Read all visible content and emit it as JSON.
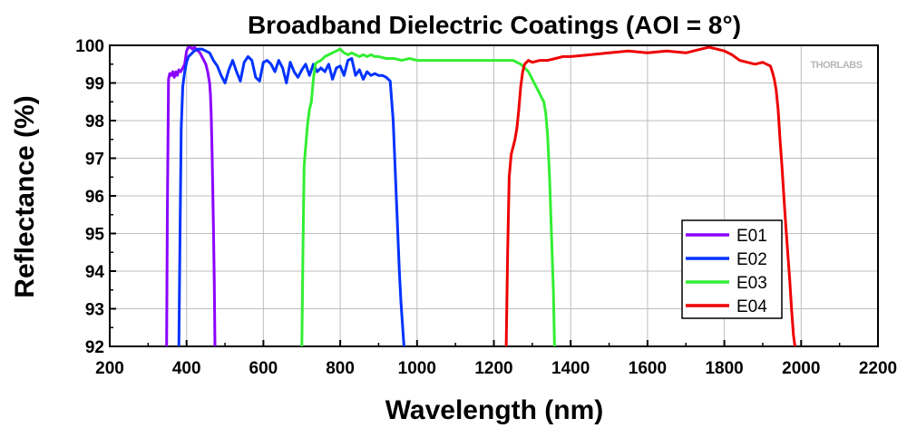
{
  "chart_data": {
    "type": "line",
    "title": "Broadband Dielectric Coatings (AOI = 8°)",
    "xlabel": "Wavelength (nm)",
    "ylabel": "Reflectance (%)",
    "xlim": [
      200,
      2200
    ],
    "ylim": [
      92,
      100
    ],
    "xticks": [
      200,
      400,
      600,
      800,
      1000,
      1200,
      1400,
      1600,
      1800,
      2000,
      2200
    ],
    "yticks": [
      92,
      93,
      94,
      95,
      96,
      97,
      98,
      99,
      100
    ],
    "grid": true,
    "legend_position": "lower-right",
    "watermark": "THORLABS",
    "series": [
      {
        "name": "E01",
        "color": "#8B00FF",
        "x": [
          348,
          350,
          353,
          356,
          360,
          364,
          368,
          372,
          376,
          380,
          385,
          390,
          395,
          400,
          405,
          410,
          415,
          420,
          425,
          430,
          435,
          440,
          445,
          450,
          455,
          460,
          462,
          464,
          466,
          468,
          470,
          472,
          474
        ],
        "y": [
          92.0,
          95.5,
          99.1,
          99.25,
          99.2,
          99.3,
          99.15,
          99.3,
          99.2,
          99.35,
          99.3,
          99.4,
          99.5,
          99.85,
          99.95,
          99.95,
          99.9,
          99.95,
          99.9,
          99.85,
          99.8,
          99.7,
          99.6,
          99.5,
          99.3,
          99.0,
          98.7,
          98.2,
          97.3,
          96.3,
          95.2,
          93.8,
          92.0
        ]
      },
      {
        "name": "E02",
        "color": "#0033FF",
        "x": [
          380,
          383,
          386,
          390,
          395,
          400,
          405,
          410,
          420,
          430,
          440,
          450,
          460,
          470,
          480,
          490,
          500,
          510,
          520,
          530,
          540,
          550,
          560,
          570,
          580,
          590,
          600,
          610,
          620,
          630,
          640,
          650,
          660,
          670,
          680,
          690,
          700,
          710,
          720,
          730,
          740,
          750,
          760,
          770,
          780,
          790,
          800,
          810,
          820,
          830,
          840,
          850,
          860,
          870,
          880,
          890,
          900,
          910,
          920,
          930,
          938,
          942,
          946,
          950,
          954,
          958,
          962,
          966
        ],
        "y": [
          92.0,
          95.0,
          97.8,
          98.9,
          99.3,
          99.55,
          99.7,
          99.75,
          99.85,
          99.9,
          99.9,
          99.85,
          99.8,
          99.6,
          99.45,
          99.2,
          99.0,
          99.35,
          99.6,
          99.3,
          99.05,
          99.55,
          99.7,
          99.6,
          99.15,
          99.05,
          99.55,
          99.6,
          99.5,
          99.3,
          99.6,
          99.4,
          99.0,
          99.55,
          99.3,
          99.15,
          99.35,
          99.5,
          99.2,
          99.5,
          99.3,
          99.4,
          99.3,
          99.5,
          99.1,
          99.4,
          99.45,
          99.2,
          99.6,
          99.65,
          99.2,
          99.35,
          99.1,
          99.3,
          99.2,
          99.25,
          99.2,
          99.2,
          99.15,
          99.05,
          98.0,
          97.0,
          96.0,
          95.0,
          94.0,
          93.2,
          92.6,
          92.0
        ]
      },
      {
        "name": "E03",
        "color": "#33EE33",
        "x": [
          700,
          703,
          706,
          710,
          715,
          720,
          725,
          730,
          735,
          740,
          750,
          760,
          770,
          780,
          790,
          800,
          810,
          820,
          830,
          840,
          850,
          860,
          870,
          880,
          890,
          900,
          920,
          940,
          960,
          980,
          1000,
          1050,
          1100,
          1150,
          1200,
          1250,
          1270,
          1280,
          1290,
          1300,
          1310,
          1320,
          1330,
          1335,
          1340,
          1345,
          1350,
          1355,
          1358
        ],
        "y": [
          92.0,
          94.5,
          96.8,
          97.3,
          97.9,
          98.3,
          98.5,
          99.1,
          99.5,
          99.55,
          99.6,
          99.7,
          99.75,
          99.8,
          99.85,
          99.9,
          99.8,
          99.75,
          99.8,
          99.75,
          99.7,
          99.75,
          99.7,
          99.75,
          99.7,
          99.7,
          99.65,
          99.65,
          99.6,
          99.65,
          99.6,
          99.6,
          99.6,
          99.6,
          99.6,
          99.6,
          99.5,
          99.4,
          99.3,
          99.1,
          98.9,
          98.7,
          98.5,
          98.2,
          97.6,
          96.5,
          95.0,
          93.5,
          92.0
        ]
      },
      {
        "name": "E04",
        "color": "#EE0000",
        "x": [
          1232,
          1236,
          1240,
          1245,
          1250,
          1255,
          1260,
          1265,
          1270,
          1275,
          1280,
          1285,
          1290,
          1300,
          1320,
          1340,
          1360,
          1380,
          1400,
          1450,
          1500,
          1550,
          1600,
          1650,
          1700,
          1720,
          1740,
          1760,
          1780,
          1800,
          1820,
          1840,
          1860,
          1880,
          1900,
          1910,
          1920,
          1925,
          1930,
          1935,
          1940,
          1945,
          1950,
          1955,
          1960,
          1965,
          1970,
          1975,
          1980,
          1984
        ],
        "y": [
          92.0,
          94.5,
          96.5,
          97.1,
          97.3,
          97.5,
          97.8,
          98.3,
          98.9,
          99.3,
          99.5,
          99.55,
          99.6,
          99.55,
          99.6,
          99.6,
          99.65,
          99.7,
          99.7,
          99.75,
          99.8,
          99.85,
          99.8,
          99.85,
          99.8,
          99.85,
          99.9,
          99.95,
          99.9,
          99.85,
          99.75,
          99.6,
          99.55,
          99.5,
          99.55,
          99.5,
          99.45,
          99.3,
          99.1,
          98.8,
          98.3,
          97.5,
          96.8,
          96.0,
          95.2,
          94.5,
          93.8,
          93.0,
          92.3,
          92.0
        ]
      }
    ]
  }
}
